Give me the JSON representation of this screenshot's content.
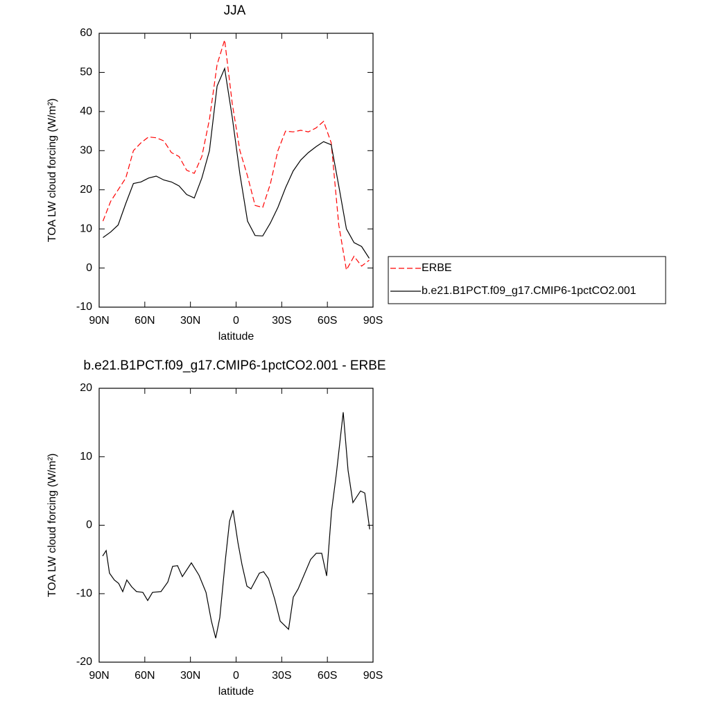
{
  "chart_data": [
    {
      "type": "line",
      "title": "JJA",
      "x_label": "latitude",
      "y_label": "TOA LW cloud forcing (W/m²)",
      "x": [
        87.5,
        82.5,
        77.5,
        72.5,
        67.5,
        62.5,
        57.5,
        52.5,
        47.5,
        42.5,
        37.5,
        32.5,
        27.5,
        22.5,
        17.5,
        12.5,
        7.5,
        2.5,
        -2.5,
        -7.5,
        -12.5,
        -17.5,
        -22.5,
        -27.5,
        -32.5,
        -37.5,
        -42.5,
        -47.5,
        -52.5,
        -57.5,
        -62.5,
        -67.5,
        -72.5,
        -77.5,
        -82.5,
        -87.5
      ],
      "series": [
        {
          "name": "ERBE",
          "color": "#ff0000",
          "line_style": "dashed",
          "values": [
            12,
            17,
            20,
            23,
            30,
            32,
            33.5,
            33.3,
            32.5,
            29.5,
            28.5,
            25,
            24.2,
            28.5,
            38,
            52,
            58.3,
            42,
            30,
            23.5,
            16,
            15.5,
            21.5,
            30,
            35,
            34.8,
            35.2,
            34.8,
            35.8,
            37.5,
            32,
            11,
            -0.5,
            3,
            0.5,
            2
          ]
        },
        {
          "name": "b.e21.B1PCT.f09_g17.CMIP6-1pctCO2.001",
          "color": "#000000",
          "line_style": "solid",
          "values": [
            7.8,
            9.2,
            11,
            16.5,
            21.6,
            22,
            23,
            23.5,
            22.5,
            22,
            21,
            18.8,
            17.9,
            23,
            30,
            46.5,
            51,
            38.5,
            24,
            12,
            8.3,
            8.2,
            11.5,
            15.5,
            20.5,
            24.8,
            27.6,
            29.5,
            31,
            32.3,
            31.5,
            21,
            10,
            6.5,
            5.5,
            2.5
          ]
        }
      ],
      "xlim": [
        90,
        -90
      ],
      "xticks": [
        {
          "value": 90,
          "label": "90N"
        },
        {
          "value": 60,
          "label": "60N"
        },
        {
          "value": 30,
          "label": "30N"
        },
        0,
        {
          "value": -30,
          "label": "30S"
        },
        {
          "value": -60,
          "label": "60S"
        },
        {
          "value": -90,
          "label": "90S"
        }
      ],
      "ylim": [
        -10,
        60
      ],
      "yticks": [
        -10,
        0,
        10,
        20,
        30,
        40,
        50,
        60
      ],
      "legend": "right"
    },
    {
      "type": "line",
      "title": "b.e21.B1PCT.f09_g17.CMIP6-1pctCO2.001 - ERBE",
      "x_label": "latitude",
      "y_label": "TOA LW cloud forcing (W/m²)",
      "x": [
        87.7,
        85.4,
        83.2,
        80,
        77.2,
        74.5,
        71.8,
        68.6,
        65.4,
        61.3,
        58.1,
        54.9,
        49.4,
        44.9,
        41.7,
        38.5,
        35.3,
        29.4,
        24.4,
        19.8,
        16.2,
        13.4,
        10.7,
        7,
        4.3,
        2,
        -1.2,
        -3.9,
        -7.1,
        -9.8,
        -15.3,
        -18.1,
        -21.3,
        -25.4,
        -29,
        -34.5,
        -37.6,
        -40.8,
        -49,
        -52.7,
        -56.3,
        -59.5,
        -62.7,
        -65.9,
        -70.4,
        -73.6,
        -76.8,
        -81.8,
        -84.6,
        -87.8
      ],
      "series": [
        {
          "color": "#000000",
          "line_style": "solid",
          "values": [
            -4.5,
            -3.7,
            -7,
            -8,
            -8.5,
            -9.7,
            -8,
            -9,
            -9.7,
            -9.8,
            -11,
            -9.8,
            -9.7,
            -8.3,
            -6,
            -5.9,
            -7.5,
            -5.5,
            -7.3,
            -9.8,
            -14,
            -16.5,
            -13.5,
            -5,
            0.6,
            2.2,
            -2.5,
            -5.8,
            -8.9,
            -9.3,
            -7,
            -6.8,
            -7.8,
            -10.8,
            -14,
            -15.2,
            -10.5,
            -9.3,
            -5,
            -4.1,
            -4.1,
            -7.4,
            2,
            7.5,
            16.5,
            8,
            3.3,
            5,
            4.7,
            -0.6
          ]
        }
      ],
      "xlim": [
        90,
        -90
      ],
      "xticks": [
        {
          "value": 90,
          "label": "90N"
        },
        {
          "value": 60,
          "label": "60N"
        },
        {
          "value": 30,
          "label": "30N"
        },
        0,
        {
          "value": -30,
          "label": "30S"
        },
        {
          "value": -60,
          "label": "60S"
        },
        {
          "value": -90,
          "label": "90S"
        }
      ],
      "ylim": [
        -20,
        20
      ],
      "yticks": [
        -20,
        -10,
        0,
        10,
        20
      ]
    }
  ]
}
